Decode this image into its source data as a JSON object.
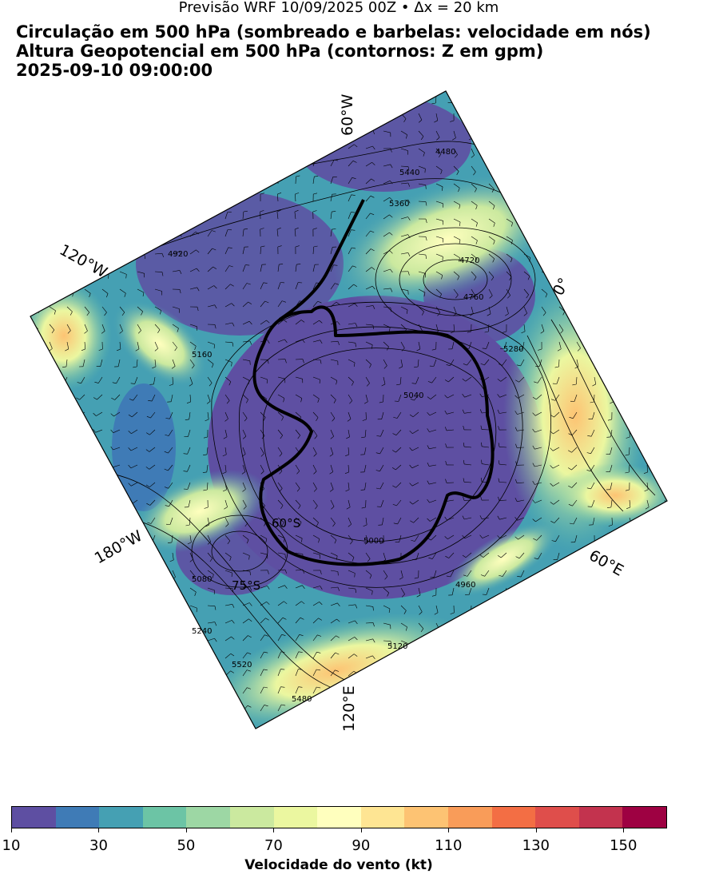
{
  "header": {
    "suptitle": "Previsão WRF 10/09/2025 00Z • Δx = 20 km",
    "title_line1": "Circulação em 500 hPa (sombreado e barbelas: velocidade em nós)",
    "title_line2": "Altura Geopotencial em 500 hPa (contornos: Z em gpm)",
    "title_line3": "2025-09-10 09:00:00"
  },
  "map": {
    "projection": "polar-stereographic-south",
    "longitude_labels": [
      "60°W",
      "120°W",
      "0°",
      "180°W",
      "60°E",
      "120°E"
    ],
    "latitude_labels": [
      "60°S",
      "75°S"
    ],
    "contour_labels": [
      "4480",
      "5440",
      "5360",
      "4720",
      "4760",
      "4920",
      "5040",
      "5000",
      "4960",
      "5160",
      "5240",
      "5120",
      "5080",
      "5280",
      "5520",
      "5480"
    ],
    "coastline_color": "#000000"
  },
  "colorbar": {
    "label": "Velocidade do vento (kt)",
    "ticks": [
      "10",
      "30",
      "50",
      "70",
      "90",
      "110",
      "130",
      "150"
    ],
    "colors": [
      "#5e4fa2",
      "#3f7bb6",
      "#45a0b3",
      "#6cc4a5",
      "#9dd7a4",
      "#cbe99f",
      "#ebf7a0",
      "#ffffbe",
      "#fee593",
      "#fdc373",
      "#f99c59",
      "#f36e44",
      "#df4e4b",
      "#c3334e",
      "#9e0142"
    ]
  }
}
